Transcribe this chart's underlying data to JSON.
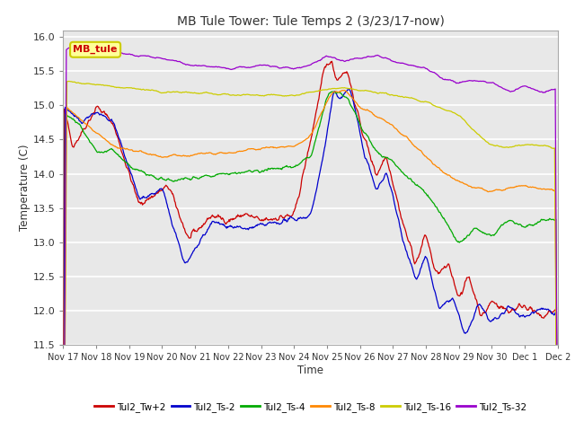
{
  "title": "MB Tule Tower: Tule Temps 2 (3/23/17-now)",
  "xlabel": "Time",
  "ylabel": "Temperature (C)",
  "ylim": [
    11.5,
    16.1
  ],
  "yticks": [
    11.5,
    12.0,
    12.5,
    13.0,
    13.5,
    14.0,
    14.5,
    15.0,
    15.5,
    16.0
  ],
  "xtick_labels": [
    "Nov 17",
    "Nov 18",
    "Nov 19",
    "Nov 20",
    "Nov 21",
    "Nov 22",
    "Nov 23",
    "Nov 24",
    "Nov 25",
    "Nov 26",
    "Nov 27",
    "Nov 28",
    "Nov 29",
    "Nov 30",
    "Dec 1",
    "Dec 2"
  ],
  "legend_entries": [
    "Tul2_Tw+2",
    "Tul2_Ts-2",
    "Tul2_Ts-4",
    "Tul2_Ts-8",
    "Tul2_Ts-16",
    "Tul2_Ts-32"
  ],
  "line_colors": [
    "#cc0000",
    "#0000cc",
    "#00aa00",
    "#ff8800",
    "#cccc00",
    "#9900cc"
  ],
  "annotation_text": "MB_tule",
  "annotation_color": "#cc0000",
  "annotation_bg": "#ffff99",
  "annotation_border": "#cccc00"
}
